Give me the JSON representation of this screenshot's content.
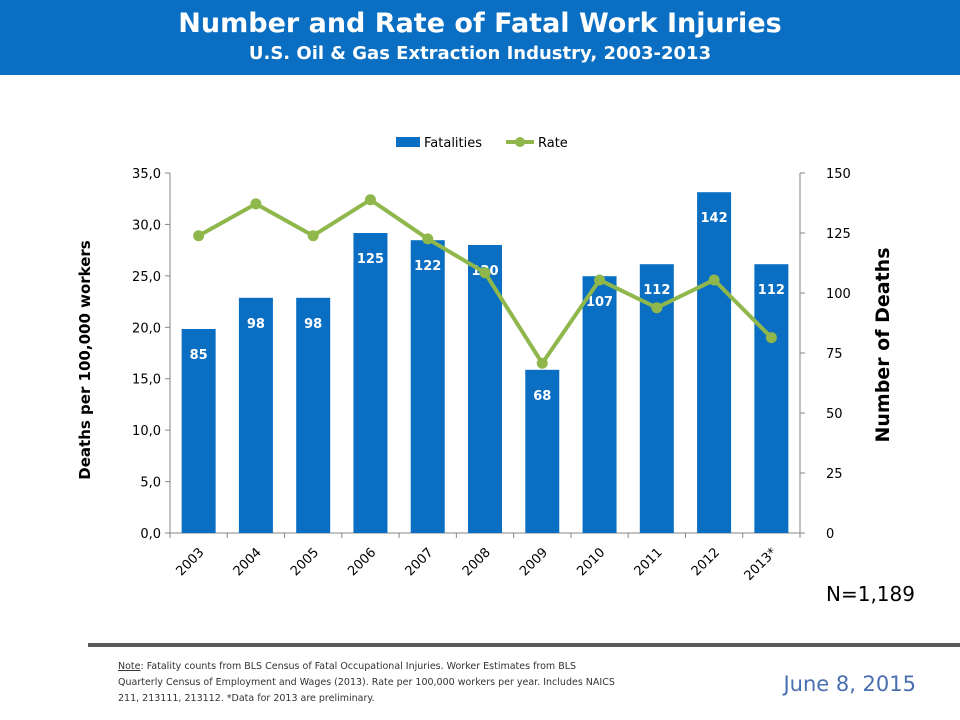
{
  "header": {
    "title": "Number and Rate of Fatal Work Injuries",
    "subtitle": "U.S. Oil & Gas Extraction Industry, 2003-2013"
  },
  "chart_data": {
    "type": "bar+line",
    "categories": [
      "2003",
      "2004",
      "2005",
      "2006",
      "2007",
      "2008",
      "2009",
      "2010",
      "2011",
      "2012",
      "2013*"
    ],
    "series": [
      {
        "name": "Fatalities",
        "type": "bar",
        "axis": "right",
        "color": "#0a6fc2",
        "values": [
          85,
          98,
          98,
          125,
          122,
          120,
          68,
          107,
          112,
          142,
          112
        ],
        "labels": [
          "85",
          "98",
          "98",
          "125",
          "122",
          "120",
          "68",
          "107",
          "112",
          "142",
          "112"
        ]
      },
      {
        "name": "Rate",
        "type": "line",
        "axis": "left",
        "color": "#8fb74c",
        "values": [
          28.9,
          32.0,
          28.9,
          32.4,
          28.6,
          25.3,
          16.5,
          24.6,
          21.9,
          24.6,
          19.0
        ]
      }
    ],
    "left_axis": {
      "label": "Deaths per 100,000 workers",
      "range": [
        0,
        35
      ],
      "ticks": [
        "0,0",
        "5,0",
        "10,0",
        "15,0",
        "20,0",
        "25,0",
        "30,0",
        "35,0"
      ]
    },
    "right_axis": {
      "label": "Number of Deaths",
      "range": [
        0,
        150
      ],
      "ticks": [
        "0",
        "25",
        "50",
        "75",
        "100",
        "125",
        "150"
      ]
    },
    "legend_position": "top-center",
    "grid": false
  },
  "n_label": "N=1,189",
  "note": {
    "label": "Note",
    "text": ": Fatality counts from BLS Census of Fatal Occupational Injuries. Worker Estimates from BLS Quarterly Census of Employment and Wages (2013). Rate per 100,000 workers per year. Includes NAICS 211, 213111, 213112. *Data for 2013 are preliminary."
  },
  "footer": {
    "date": "June 8, 2015"
  }
}
